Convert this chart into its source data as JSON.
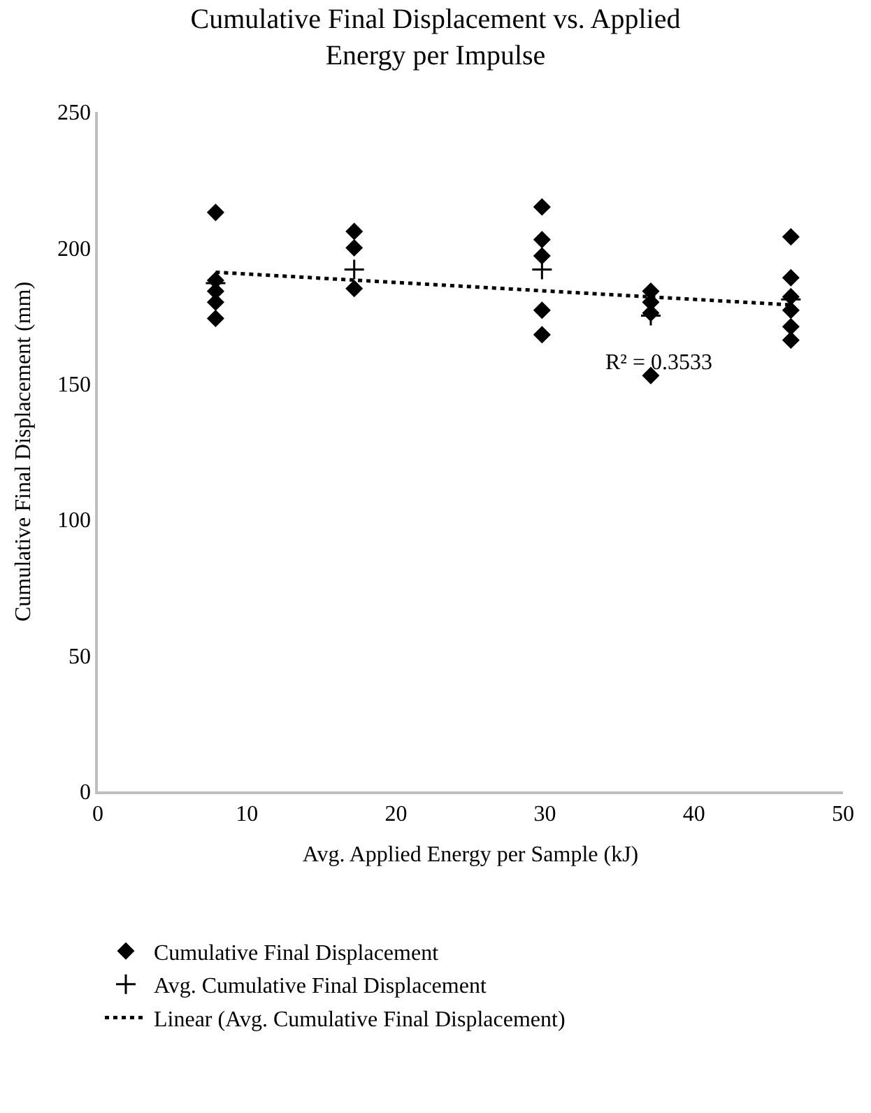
{
  "chart_data": {
    "type": "scatter",
    "title": "Cumulative Final Displacement vs. Applied Energy per Impulse",
    "xlabel": "Avg. Applied Energy per Sample (kJ)",
    "ylabel": "Cumulative Final Displacement (mm)",
    "xlim": [
      0,
      50
    ],
    "xticks": [
      0,
      10,
      20,
      30,
      40,
      50
    ],
    "ylim": [
      0,
      250
    ],
    "yticks": [
      0,
      50,
      100,
      150,
      200,
      250
    ],
    "grid": false,
    "legend": "bottom",
    "series": [
      {
        "name": "Cumulative Final Displacement",
        "color": "#000000",
        "marker": "diamond",
        "x": [
          7.9,
          7.9,
          7.9,
          7.9,
          7.9,
          17.2,
          17.2,
          17.2,
          29.8,
          29.8,
          29.8,
          29.8,
          29.8,
          37.1,
          37.1,
          37.1,
          37.1,
          46.5,
          46.5,
          46.5,
          46.5,
          46.5,
          46.5
        ],
        "values": [
          213,
          188,
          184,
          180,
          174,
          206,
          200,
          185,
          215,
          203,
          197,
          177,
          168,
          184,
          180,
          176,
          153,
          204,
          189,
          182,
          177,
          171,
          166
        ]
      },
      {
        "name": "Avg. Cumulative Final Displacement",
        "color": "#000000",
        "marker": "cross",
        "x": [
          7.9,
          17.2,
          29.8,
          37.1,
          46.5
        ],
        "values": [
          187,
          192,
          192,
          175,
          181
        ]
      },
      {
        "name": "Linear (Avg. Cumulative Final Displacement)",
        "type": "line",
        "line_style": "dotted",
        "color": "#000000",
        "marker": "none",
        "x": [
          7.9,
          46.5
        ],
        "values": [
          191,
          179
        ]
      }
    ],
    "annotations": [
      "R² = 0.3533"
    ]
  }
}
